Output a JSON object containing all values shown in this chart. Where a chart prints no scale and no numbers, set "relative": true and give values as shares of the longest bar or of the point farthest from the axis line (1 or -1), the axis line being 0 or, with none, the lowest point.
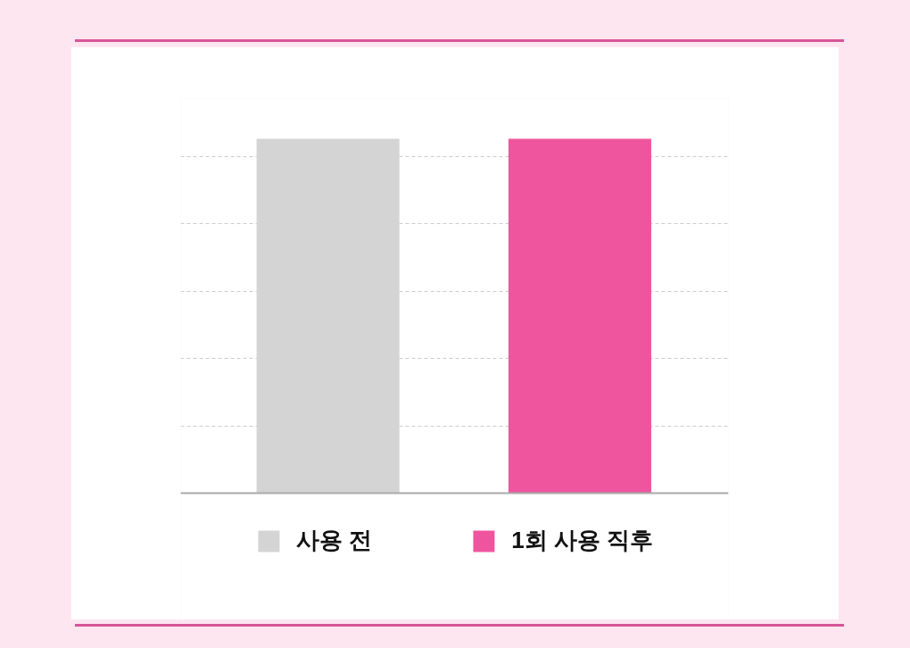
{
  "chart_data": {
    "type": "bar",
    "relative": true,
    "categories": [
      null
    ],
    "grid": "y",
    "legend": "bottom",
    "series": [
      {
        "name": "사용 전",
        "color": "#d4d4d4",
        "values": [
          1
        ]
      },
      {
        "name": "1회 사용 직후",
        "color": "#ef559e",
        "values": [
          1
        ]
      }
    ]
  }
}
